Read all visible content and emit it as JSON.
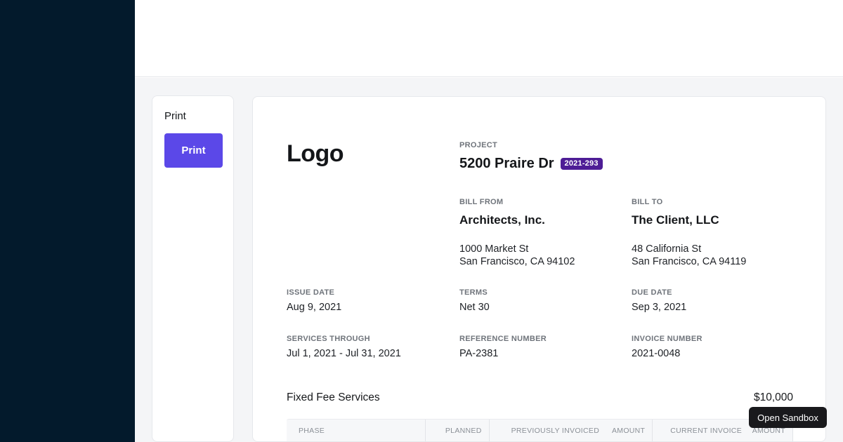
{
  "app": {
    "open_sandbox_label": "Open Sandbox"
  },
  "print_panel": {
    "title": "Print",
    "button_label": "Print"
  },
  "invoice": {
    "logo": "Logo",
    "project": {
      "label": "PROJECT",
      "name": "5200 Praire Dr",
      "badge": "2021-293"
    },
    "bill_from": {
      "label": "BILL FROM",
      "name": "Architects, Inc.",
      "address_line1": "1000 Market St",
      "address_line2": "San Francisco, CA 94102"
    },
    "bill_to": {
      "label": "BILL TO",
      "name": "The Client, LLC",
      "address_line1": "48 California St",
      "address_line2": "San Francisco, CA 94119"
    },
    "meta": {
      "issue_date": {
        "label": "ISSUE DATE",
        "value": "Aug 9, 2021"
      },
      "terms": {
        "label": "TERMS",
        "value": "Net 30"
      },
      "due_date": {
        "label": "DUE DATE",
        "value": "Sep 3, 2021"
      },
      "services_through": {
        "label": "SERVICES THROUGH",
        "value": "Jul 1, 2021 - Jul 31, 2021"
      },
      "reference_number": {
        "label": "REFERENCE NUMBER",
        "value": "PA-2381"
      },
      "invoice_number": {
        "label": "INVOICE NUMBER",
        "value": "2021-0048"
      }
    },
    "services": {
      "title": "Fixed Fee Services",
      "amount": "$10,000"
    },
    "table": {
      "columns": [
        "PHASE",
        "PLANNED",
        "PREVIOUSLY INVOICED",
        "AMOUNT",
        "CURRENT INVOICE",
        "AMOUNT"
      ]
    }
  },
  "colors": {
    "sidebar": "#031a2c",
    "page_background": "#f4f5f7",
    "accent_button": "#5b48e8",
    "badge": "#4e1d96",
    "open_sandbox_button": "#19191c"
  }
}
